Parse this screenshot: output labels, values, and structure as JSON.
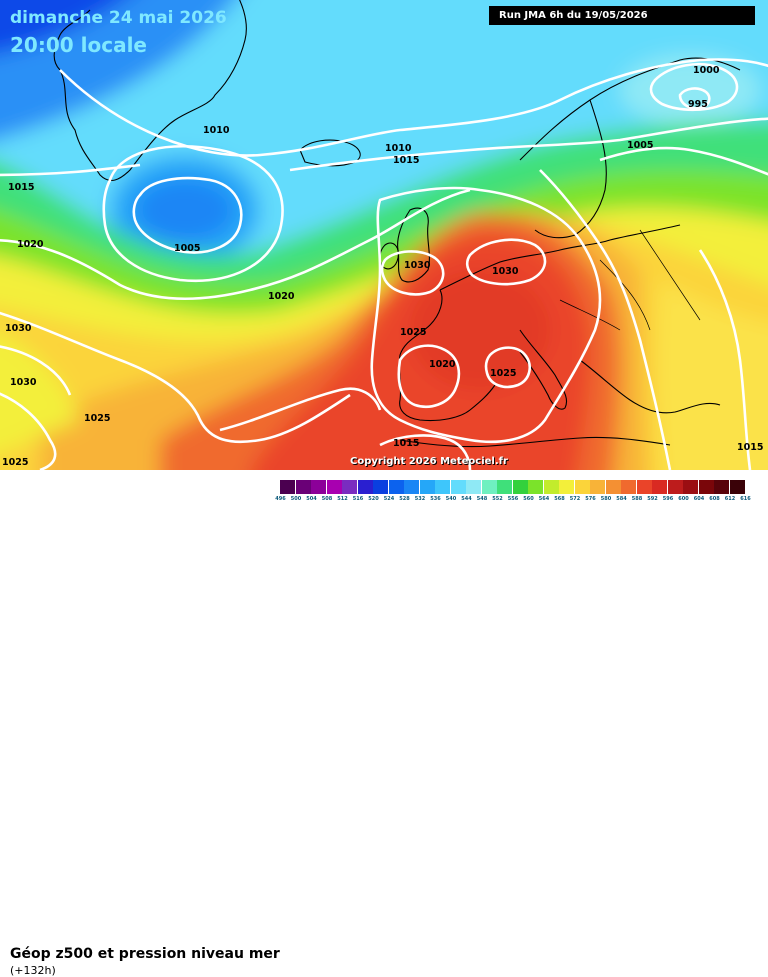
{
  "header": {
    "date": "dimanche 24 mai 2026",
    "time": "20:00 locale",
    "run": "Run JMA 6h du 19/05/2026"
  },
  "copyright": "Copyright 2026 Meteociel.fr",
  "legend": {
    "title": "Géop z500 et pression niveau mer",
    "subtitle": "(+132h)",
    "ticks": [
      "496",
      "500",
      "504",
      "508",
      "512",
      "516",
      "520",
      "524",
      "528",
      "532",
      "536",
      "540",
      "544",
      "548",
      "552",
      "556",
      "560",
      "564",
      "568",
      "572",
      "576",
      "580",
      "584",
      "588",
      "592",
      "596",
      "600",
      "604",
      "608",
      "612",
      "616"
    ],
    "colors": [
      "#4b0050",
      "#6a0077",
      "#8c0099",
      "#a800b0",
      "#7a2cc0",
      "#2a1fd0",
      "#0a3fe0",
      "#0c62ee",
      "#1a86f5",
      "#25a7f8",
      "#3ec6fb",
      "#63dcfc",
      "#8fe9f5",
      "#6ff0c0",
      "#3fe07a",
      "#33d13c",
      "#7be32a",
      "#c2ec2c",
      "#f3ef3a",
      "#fbd43a",
      "#f8b338",
      "#f49033",
      "#f06a2e",
      "#ea4429",
      "#d92a22",
      "#bd1c1c",
      "#9b0e12",
      "#7a060a",
      "#58030a",
      "#3a0208"
    ]
  },
  "isobars": [
    "1000",
    "995",
    "1005",
    "1010",
    "1010",
    "1015",
    "1015",
    "1005",
    "1020",
    "1030",
    "1030",
    "1020",
    "1025",
    "1020",
    "1025",
    "1030",
    "1030",
    "1025",
    "1015",
    "1025",
    "1015"
  ],
  "colors": {
    "title": "#7fe8ff",
    "isobar": "#ffffff",
    "land": "#000000"
  }
}
